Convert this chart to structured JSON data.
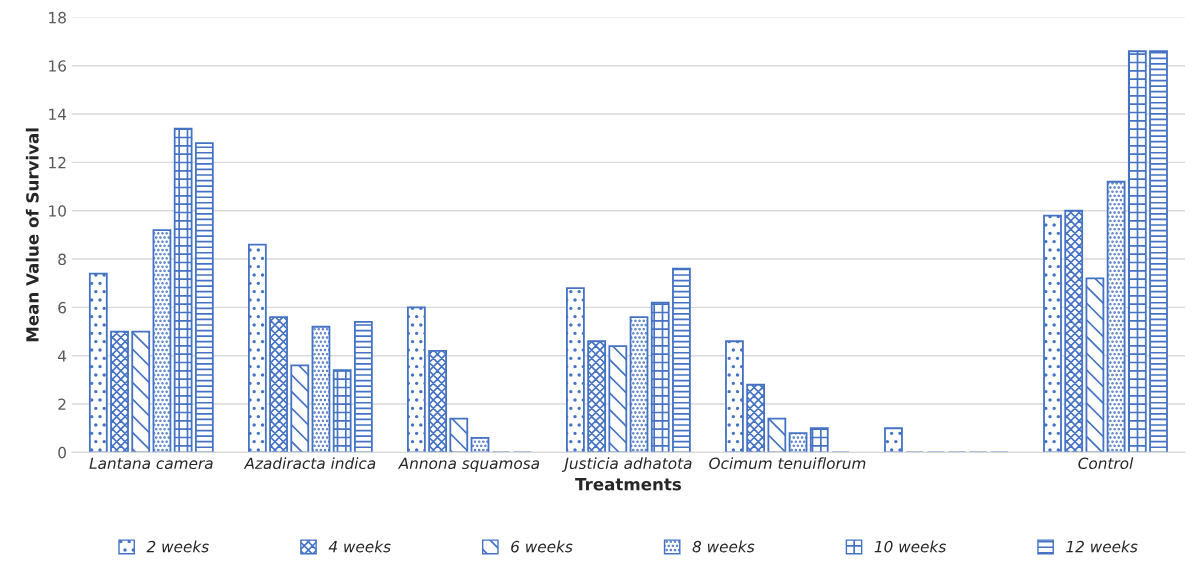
{
  "chart_data": {
    "type": "bar",
    "xlabel": "Treatments",
    "ylabel": "Mean Value of Survival",
    "categories": [
      "Lantana camera",
      "Azadiracta indica",
      "Annona squamosa",
      "Justicia adhatota",
      "Ocimum tenuiflorum",
      null,
      "Control"
    ],
    "series": [
      {
        "name": "2 weeks",
        "color": "#4472c4",
        "values": [
          7.4,
          8.6,
          6.0,
          6.8,
          4.6,
          1.0,
          9.8
        ]
      },
      {
        "name": "4 weeks",
        "color": "#4472c4",
        "values": [
          5.0,
          5.6,
          4.2,
          4.6,
          2.8,
          0,
          10.0
        ]
      },
      {
        "name": "6 weeks",
        "color": "#4472c4",
        "values": [
          5.0,
          3.6,
          1.4,
          4.4,
          1.4,
          0,
          7.2
        ]
      },
      {
        "name": "8 weeks",
        "color": "#4472c4",
        "values": [
          9.2,
          5.2,
          0.6,
          5.6,
          0.8,
          0,
          11.2
        ]
      },
      {
        "name": "10 weeks",
        "color": "#4472c4",
        "values": [
          13.4,
          3.4,
          0,
          6.2,
          1.0,
          0,
          16.6
        ]
      },
      {
        "name": "12 weeks",
        "color": "#4472c4",
        "values": [
          12.8,
          5.4,
          0,
          7.6,
          0,
          0,
          16.6
        ]
      }
    ],
    "ylim": [
      0,
      18
    ],
    "yticks": [
      0,
      2,
      4,
      6,
      8,
      10,
      12,
      14,
      16,
      18
    ],
    "grid": "y",
    "legend": "bottom"
  }
}
